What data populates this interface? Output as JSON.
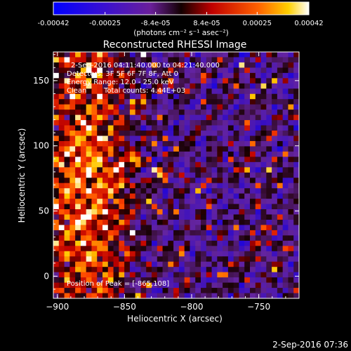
{
  "chart_data": {
    "type": "heatmap",
    "title": "Reconstructed RHESSI Image",
    "colorbar": {
      "min": -0.00042,
      "max": 0.00042,
      "ticks": [
        {
          "value": -0.00042,
          "label": "-0.00042"
        },
        {
          "value": -0.00025,
          "label": "-0.00025"
        },
        {
          "value": -8.4e-05,
          "label": "-8.4e-05"
        },
        {
          "value": 8.4e-05,
          "label": "8.4e-05"
        },
        {
          "value": 0.00025,
          "label": "0.00025"
        },
        {
          "value": 0.00042,
          "label": "0.00042"
        }
      ],
      "unit_label": "(photons cm⁻² s⁻¹ asec⁻²)"
    },
    "xlabel": "Heliocentric X (arcsec)",
    "ylabel": "Heliocentric Y (arcsec)",
    "xlim": [
      -903,
      -720
    ],
    "ylim": [
      -17,
      172
    ],
    "xticks": [
      {
        "value": -900,
        "label": "−900"
      },
      {
        "value": -850,
        "label": "−850"
      },
      {
        "value": -800,
        "label": "−800"
      },
      {
        "value": -750,
        "label": "−750"
      }
    ],
    "yticks": [
      {
        "value": 0,
        "label": "0"
      },
      {
        "value": 50,
        "label": "50"
      },
      {
        "value": 100,
        "label": "100"
      },
      {
        "value": 150,
        "label": "150"
      }
    ],
    "annotations": {
      "time_range": "2-Sep-2016 04:11:40.000 to 04:21:40.000",
      "detectors": "Detectors: 3F 5F 6F 7F 8F, Att 0",
      "energy": "Energy Range: 12.0 - 25.0 keV",
      "method": "Clean",
      "counts": "Total counts: 4.44E+03",
      "peak": "Position of Peak = [-865,108]"
    },
    "peak_position": [
      -865,
      108
    ],
    "grid_size": [
      45,
      47
    ],
    "colormap": [
      "#0000ff",
      "#4000a0",
      "#6a1f9a",
      "#1a0000",
      "#ff2000",
      "#ffb000",
      "#ffffff"
    ],
    "timestamp": "2-Sep-2016 07:36"
  }
}
